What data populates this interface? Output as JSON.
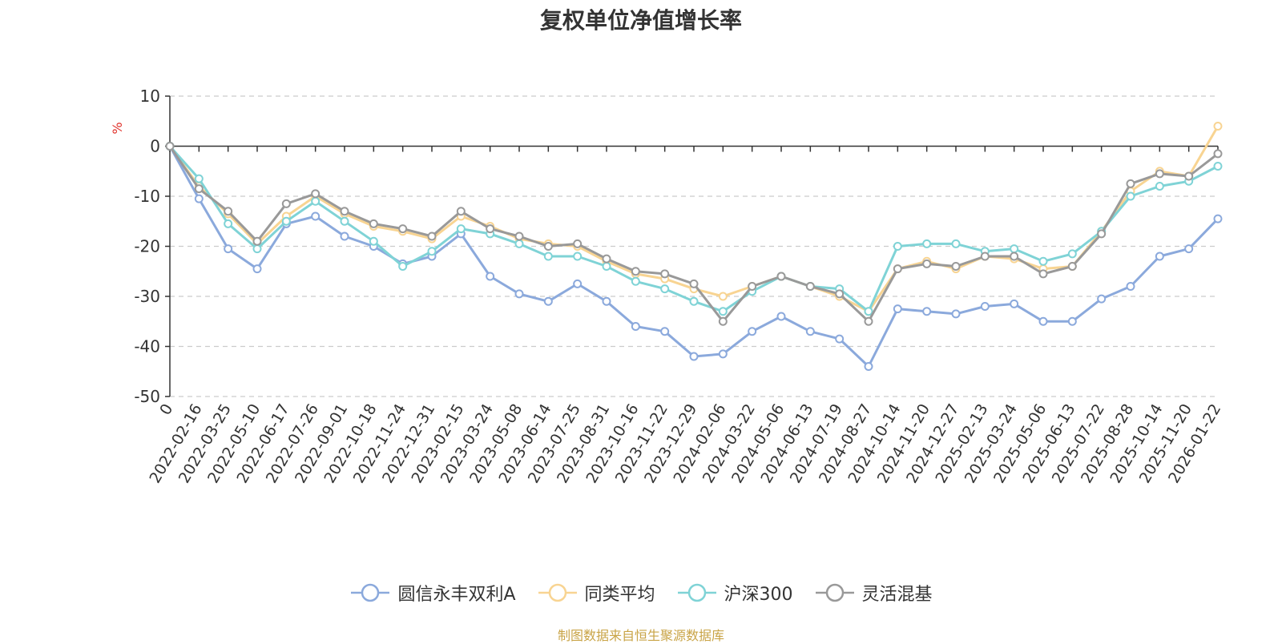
{
  "chart_data": {
    "type": "line",
    "title": "复权单位净值增长率",
    "ylabel": "%",
    "ylim": [
      -50,
      10
    ],
    "yticks": [
      10,
      0,
      -10,
      -20,
      -30,
      -40,
      -50
    ],
    "x_tick_labels": [
      "0",
      "2022-02-16",
      "2022-03-25",
      "2022-05-10",
      "2022-06-17",
      "2022-07-26",
      "2022-09-01",
      "2022-10-18",
      "2022-11-24",
      "2022-12-31",
      "2023-02-15",
      "2023-03-24",
      "2023-05-08",
      "2023-06-14",
      "2023-07-25",
      "2023-08-31",
      "2023-10-16",
      "2023-11-22",
      "2023-12-29",
      "2024-02-06",
      "2024-03-22",
      "2024-05-06",
      "2024-06-13",
      "2024-07-19",
      "2024-08-27",
      "2024-10-14",
      "2024-11-20",
      "2024-12-27",
      "2025-02-13",
      "2025-03-24",
      "2025-05-06",
      "2025-06-13",
      "2025-07-22",
      "2025-08-28",
      "2025-10-14",
      "2025-11-20",
      "2026-01-22"
    ],
    "grid": true,
    "legend_position": "bottom",
    "series": [
      {
        "name": "圆信永丰双利A",
        "color": "#8ba9dc",
        "values": [
          0,
          -10.5,
          -20.5,
          -24.5,
          -15.5,
          -14,
          -18,
          -20,
          -23.5,
          -22,
          -17.5,
          -26,
          -29.5,
          -31,
          -27.5,
          -31,
          -36,
          -37,
          -42,
          -41.5,
          -37,
          -34,
          -37,
          -38.5,
          -44,
          -32.5,
          -33,
          -33.5,
          -32,
          -31.5,
          -35,
          -35,
          -30.5,
          -28,
          -22,
          -20.5,
          -14.5
        ]
      },
      {
        "name": "同类平均",
        "color": "#f8d492",
        "values": [
          0,
          -8,
          -13.5,
          -19.5,
          -14,
          -10,
          -13.5,
          -16,
          -17,
          -18.5,
          -14,
          -16,
          -18.5,
          -19.5,
          -20,
          -23,
          -25.5,
          -26.5,
          -28.5,
          -30,
          -28,
          -26,
          -28,
          -30,
          -33,
          -24.5,
          -23,
          -24.5,
          -22,
          -22.5,
          -24.5,
          -24,
          -17,
          -9,
          -5,
          -6,
          4
        ]
      },
      {
        "name": "沪深300",
        "color": "#7fd3d6",
        "values": [
          0,
          -6.5,
          -15.5,
          -20.5,
          -15,
          -11,
          -15,
          -19,
          -24,
          -21,
          -16.5,
          -17.5,
          -19.5,
          -22,
          -22,
          -24,
          -27,
          -28.5,
          -31,
          -33,
          -29,
          -26,
          -28,
          -28.5,
          -33,
          -20,
          -19.5,
          -19.5,
          -21,
          -20.5,
          -23,
          -21.5,
          -17,
          -10,
          -8,
          -7,
          -4
        ]
      },
      {
        "name": "灵活混基",
        "color": "#999999",
        "values": [
          0,
          -8.5,
          -13,
          -19,
          -11.5,
          -9.5,
          -13,
          -15.5,
          -16.5,
          -18,
          -13,
          -16.5,
          -18,
          -20,
          -19.5,
          -22.5,
          -25,
          -25.5,
          -27.5,
          -35,
          -28,
          -26,
          -28,
          -29.5,
          -35,
          -24.5,
          -23.5,
          -24,
          -22,
          -22,
          -25.5,
          -24,
          -17.5,
          -7.5,
          -5.5,
          -6,
          -1.5
        ]
      }
    ]
  },
  "footer": {
    "source": "制图数据来自恒生聚源数据库"
  }
}
